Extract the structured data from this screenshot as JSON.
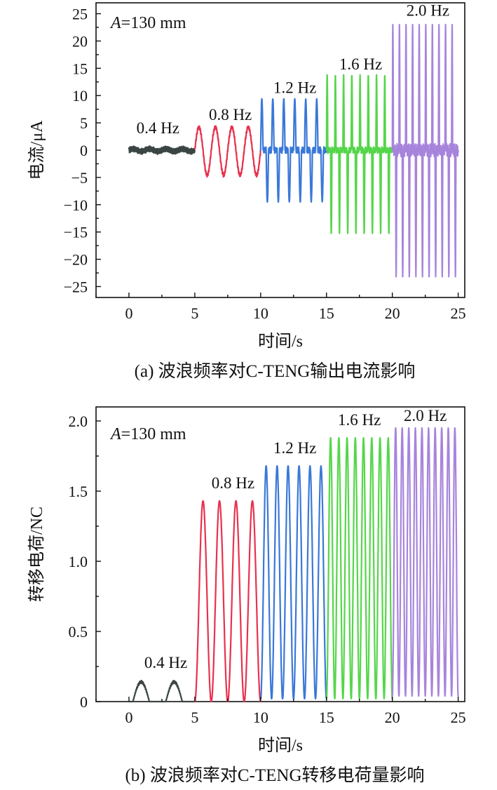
{
  "colors": {
    "c04": "#3a4544",
    "c08": "#e8314f",
    "c12": "#3a78d8",
    "c16": "#55d64a",
    "c20": "#a784dc"
  },
  "chart_data": [
    {
      "id": "a",
      "type": "line",
      "caption": "(a) 波浪频率对C-TENG输出电流影响",
      "annotation": "A=130 mm",
      "annotation_italic": "A",
      "annotation_rest": "=130 mm",
      "xlabel": "时间/s",
      "ylabel": "电流/μA",
      "xlim": [
        -2.5,
        25.5
      ],
      "ylim": [
        -27,
        27
      ],
      "xticks": [
        0,
        5,
        10,
        15,
        20,
        25
      ],
      "xtick_labels": [
        "0",
        "5",
        "10",
        "15",
        "20",
        "25"
      ],
      "yticks": [
        -25,
        -20,
        -15,
        -10,
        -5,
        0,
        5,
        10,
        15,
        20,
        25
      ],
      "ytick_labels": [
        "−25",
        "−20",
        "−15",
        "−10",
        "−5",
        "0",
        "5",
        "10",
        "15",
        "20",
        "25"
      ],
      "series": [
        {
          "name": "0.4 Hz",
          "label": "0.4 Hz",
          "color_key": "c04",
          "freq": 0.4,
          "t_start": 0,
          "t_end": 5,
          "wave": "current",
          "amp_pos": 0.9,
          "amp_neg": 0.9,
          "label_at": [
            2.2,
            3.1
          ]
        },
        {
          "name": "0.8 Hz",
          "label": "0.8 Hz",
          "color_key": "c08",
          "freq": 0.8,
          "t_start": 5,
          "t_end": 10,
          "wave": "current",
          "amp_pos": 4.2,
          "amp_neg": 4.6,
          "label_at": [
            7.7,
            5.5
          ]
        },
        {
          "name": "1.2 Hz",
          "label": "1.2 Hz",
          "color_key": "c12",
          "freq": 1.2,
          "t_start": 10,
          "t_end": 15,
          "wave": "current",
          "amp_pos": 9.4,
          "amp_neg": 9.5,
          "label_at": [
            12.6,
            10.5
          ]
        },
        {
          "name": "1.6 Hz",
          "label": "1.6 Hz",
          "color_key": "c16",
          "freq": 1.6,
          "t_start": 15,
          "t_end": 20,
          "wave": "current",
          "amp_pos": 13.8,
          "amp_neg": 15.3,
          "label_at": [
            17.6,
            14.8
          ]
        },
        {
          "name": "2.0 Hz",
          "label": "2.0 Hz",
          "color_key": "c20",
          "freq": 2.0,
          "t_start": 20,
          "t_end": 25,
          "wave": "current",
          "amp_pos": 23.0,
          "amp_neg": 23.2,
          "label_at": [
            22.7,
            24.6
          ]
        }
      ]
    },
    {
      "id": "b",
      "type": "line",
      "caption": "(b) 波浪频率对C-TENG转移电荷量影响",
      "annotation": "A=130 mm",
      "annotation_italic": "A",
      "annotation_rest": "=130 mm",
      "xlabel": "时间/s",
      "ylabel": "转移电荷/NC",
      "xlim": [
        -2.5,
        25.5
      ],
      "ylim": [
        0,
        2.1
      ],
      "xticks": [
        0,
        5,
        10,
        15,
        20,
        25
      ],
      "xtick_labels": [
        "0",
        "5",
        "10",
        "15",
        "20",
        "25"
      ],
      "yticks": [
        0,
        0.5,
        1.0,
        1.5,
        2.0
      ],
      "ytick_labels": [
        "0",
        "0.5",
        "1.0",
        "1.5",
        "2.0"
      ],
      "series": [
        {
          "name": "0.4 Hz",
          "label": "0.4 Hz",
          "color_key": "c04",
          "freq": 0.4,
          "t_start": 0,
          "t_end": 5,
          "wave": "charge",
          "peak": 0.14,
          "base": 0.0,
          "label_at": [
            2.8,
            0.24
          ]
        },
        {
          "name": "0.8 Hz",
          "label": "0.8 Hz",
          "color_key": "c08",
          "freq": 0.8,
          "t_start": 5,
          "t_end": 10,
          "wave": "charge",
          "peak": 1.43,
          "base": 0.0,
          "label_at": [
            7.9,
            1.52
          ]
        },
        {
          "name": "1.2 Hz",
          "label": "1.2 Hz",
          "color_key": "c12",
          "freq": 1.2,
          "t_start": 10,
          "t_end": 15,
          "wave": "charge",
          "peak": 1.68,
          "base": 0.02,
          "label_at": [
            12.6,
            1.77
          ]
        },
        {
          "name": "1.6 Hz",
          "label": "1.6 Hz",
          "color_key": "c16",
          "freq": 1.6,
          "t_start": 15,
          "t_end": 20,
          "wave": "charge",
          "peak": 1.88,
          "base": 0.02,
          "label_at": [
            17.5,
            1.97
          ]
        },
        {
          "name": "2.0 Hz",
          "label": "2.0 Hz",
          "color_key": "c20",
          "freq": 2.0,
          "t_start": 20,
          "t_end": 25,
          "wave": "charge",
          "peak": 1.95,
          "base": 0.04,
          "label_at": [
            22.5,
            2.0
          ]
        }
      ]
    }
  ]
}
